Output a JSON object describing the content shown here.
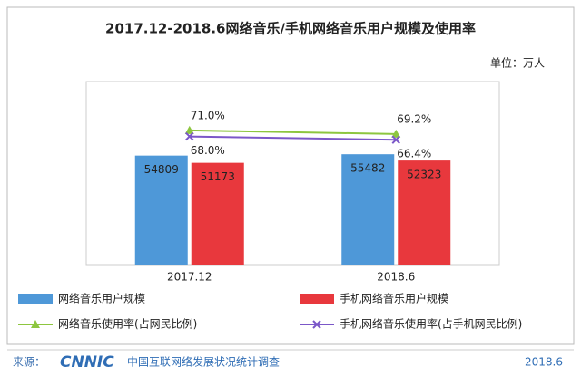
{
  "chart_data": {
    "type": "bar",
    "title": "2017.12-2018.6网络音乐/手机网络音乐用户规模及使用率",
    "unit_label": "单位：万人",
    "categories": [
      "2017.12",
      "2018.6"
    ],
    "series": [
      {
        "name": "网络音乐用户规模",
        "type": "bar",
        "color": "#4e98d8",
        "values": [
          54809,
          55482
        ]
      },
      {
        "name": "手机网络音乐用户规模",
        "type": "bar",
        "color": "#e8383d",
        "values": [
          51173,
          52323
        ]
      },
      {
        "name": "网络音乐使用率(占网民比例)",
        "type": "line",
        "axis": "y2",
        "color": "#8dc63f",
        "marker": "triangle",
        "values": [
          71.0,
          69.2
        ],
        "value_labels": [
          "71.0%",
          "69.2%"
        ]
      },
      {
        "name": "手机网络音乐使用率(占手机网民比例)",
        "type": "line",
        "axis": "y2",
        "color": "#7b57c8",
        "marker": "x",
        "values": [
          68.0,
          66.4
        ],
        "value_labels": [
          "68.0%",
          "66.4%"
        ]
      }
    ],
    "ylim": [
      0,
      92000
    ],
    "y2lim": [
      5,
      95
    ],
    "legend": "bottom"
  },
  "footer": {
    "source_label": "来源：",
    "logo": "CNNIC",
    "source": "中国互联网络发展状况统计调查",
    "date": "2018.6"
  }
}
